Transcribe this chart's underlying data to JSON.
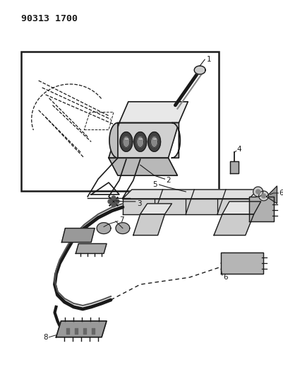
{
  "title": "90313 1700",
  "bg_color": "#ffffff",
  "line_color": "#1a1a1a",
  "fig_width": 4.02,
  "fig_height": 5.33,
  "dpi": 100,
  "label_fontsize": 7.5,
  "title_fontsize": 9.5
}
